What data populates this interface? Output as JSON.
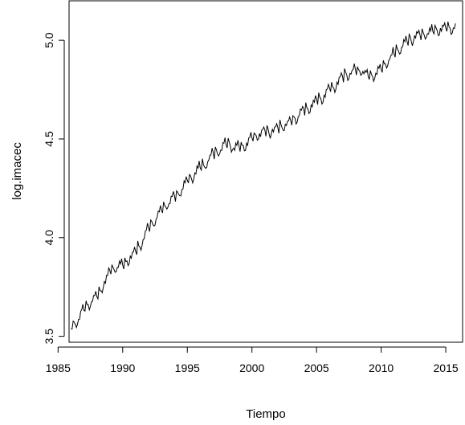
{
  "chart_data": {
    "type": "line",
    "title": "",
    "xlabel": "Tiempo",
    "ylabel": "log.imacec",
    "xlim": [
      1985.85,
      2016.3
    ],
    "ylim": [
      3.47,
      5.2
    ],
    "x_ticks": [
      1985,
      1990,
      1995,
      2000,
      2005,
      2010,
      2015
    ],
    "y_ticks": [
      3.5,
      4.0,
      4.5,
      5.0
    ],
    "x_tick_labels": [
      "1985",
      "1990",
      "1995",
      "2000",
      "2005",
      "2010",
      "2015"
    ],
    "y_tick_labels": [
      "3.5",
      "4.0",
      "4.5",
      "5.0"
    ],
    "series": [
      {
        "x": [
          1986.0,
          1986.5,
          1987.0,
          1987.5,
          1988.0,
          1988.5,
          1989.0,
          1989.5,
          1990.0,
          1990.5,
          1991.0,
          1991.5,
          1992.0,
          1992.5,
          1993.0,
          1993.5,
          1994.0,
          1994.5,
          1995.0,
          1995.5,
          1996.0,
          1996.5,
          1997.0,
          1997.5,
          1998.0,
          1998.5,
          1999.0,
          1999.5,
          2000.0,
          2000.5,
          2001.0,
          2001.5,
          2002.0,
          2002.5,
          2003.0,
          2003.5,
          2004.0,
          2004.5,
          2005.0,
          2005.5,
          2006.0,
          2006.5,
          2007.0,
          2007.5,
          2008.0,
          2008.5,
          2009.0,
          2009.5,
          2010.0,
          2010.5,
          2011.0,
          2011.5,
          2012.0,
          2012.5,
          2013.0,
          2013.5,
          2014.0,
          2014.5,
          2015.0,
          2015.5
        ],
        "values": [
          3.54,
          3.58,
          3.63,
          3.67,
          3.7,
          3.76,
          3.82,
          3.85,
          3.86,
          3.89,
          3.93,
          3.98,
          4.05,
          4.09,
          4.14,
          4.17,
          4.2,
          4.24,
          4.28,
          4.32,
          4.35,
          4.38,
          4.42,
          4.44,
          4.47,
          4.46,
          4.45,
          4.47,
          4.5,
          4.52,
          4.53,
          4.54,
          4.55,
          4.57,
          4.58,
          4.61,
          4.64,
          4.66,
          4.69,
          4.71,
          4.75,
          4.77,
          4.81,
          4.83,
          4.84,
          4.85,
          4.81,
          4.83,
          4.85,
          4.89,
          4.93,
          4.96,
          4.99,
          5.01,
          5.02,
          5.03,
          5.04,
          5.05,
          5.06,
          5.06
        ]
      }
    ],
    "seasonal_amplitude": 0.035,
    "grid": false,
    "legend": "none",
    "line_color": "#000000",
    "axis_color": "#000000"
  }
}
